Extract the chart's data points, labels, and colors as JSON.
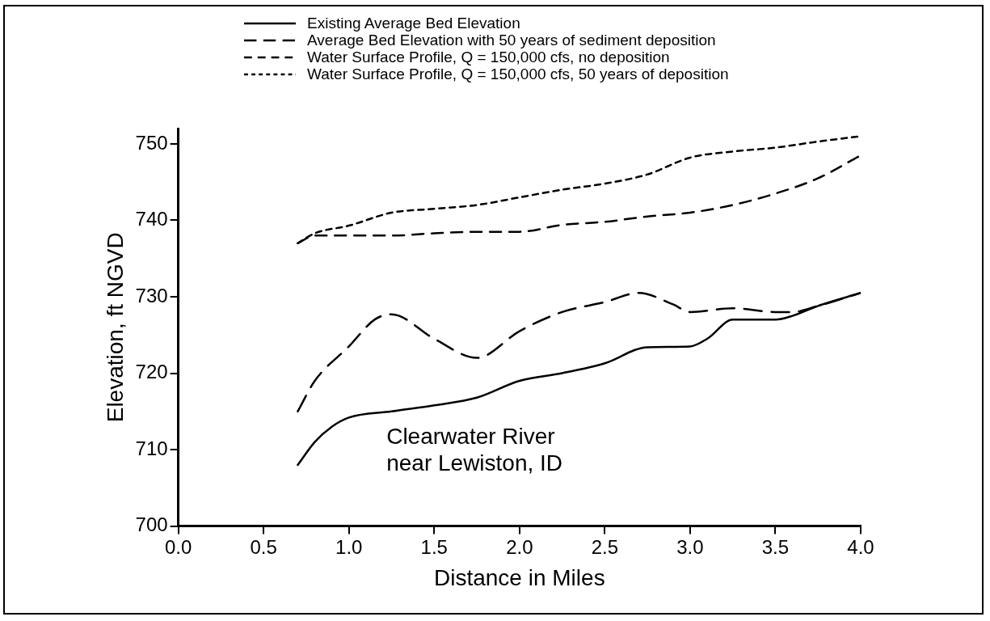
{
  "chart_data": {
    "type": "line",
    "xlabel": "Distance in Miles",
    "ylabel": "Elevation, ft NGVD",
    "xlim": [
      0,
      4
    ],
    "xticks": [
      {
        "value": 0,
        "label": "0.0"
      },
      {
        "value": 0.5,
        "label": "0.5"
      },
      {
        "value": 1,
        "label": "1.0"
      },
      {
        "value": 1.5,
        "label": "1.5"
      },
      {
        "value": 2,
        "label": "2.0"
      },
      {
        "value": 2.5,
        "label": "2.5"
      },
      {
        "value": 3,
        "label": "3.0"
      },
      {
        "value": 3.5,
        "label": "3.5"
      },
      {
        "value": 4,
        "label": "4.0"
      }
    ],
    "ylim": [
      700,
      752
    ],
    "yticks": [
      700,
      710,
      720,
      730,
      740,
      750
    ],
    "grid": false,
    "legend": "top",
    "marker": "none",
    "annotations": [
      "Clearwater River\nnear Lewiston, ID"
    ],
    "series": [
      {
        "name": "Existing Average Bed Elevation",
        "color": "#000000",
        "line_style": "solid",
        "x": [
          0.7,
          0.8,
          0.9,
          1.0,
          1.25,
          1.5,
          1.75,
          2.0,
          2.25,
          2.5,
          2.75,
          3.0,
          3.1,
          3.25,
          3.5,
          3.6,
          3.75,
          4.0
        ],
        "values": [
          708,
          711,
          713,
          714.2,
          715,
          715.8,
          716.8,
          719,
          720,
          721.3,
          723.4,
          723.5,
          724.5,
          727,
          727,
          727.5,
          728.8,
          730.5
        ]
      },
      {
        "name": "Average Bed Elevation with 50 years of sediment deposition",
        "color": "#000000",
        "line_style": "dashed",
        "x": [
          0.7,
          0.8,
          1.0,
          1.15,
          1.25,
          1.5,
          1.75,
          2.0,
          2.25,
          2.5,
          2.7,
          2.9,
          3.0,
          3.25,
          3.5,
          3.6,
          3.75,
          4.0
        ],
        "values": [
          715,
          719,
          723.5,
          727,
          727.7,
          724.5,
          722,
          725.5,
          728,
          729.3,
          730.5,
          729,
          728,
          728.5,
          728,
          728,
          728.8,
          730.5
        ]
      },
      {
        "name": "Water Surface Profile, Q = 150,000 cfs, no deposition",
        "color": "#000000",
        "line_style": "dashed",
        "x": [
          0.7,
          0.8,
          1.0,
          1.25,
          1.5,
          1.75,
          2.0,
          2.25,
          2.5,
          2.75,
          3.0,
          3.25,
          3.5,
          3.75,
          4.0
        ],
        "values": [
          737,
          738,
          738,
          738,
          738.3,
          738.5,
          738.5,
          739.4,
          739.8,
          740.5,
          741,
          742,
          743.5,
          745.5,
          748.5
        ]
      },
      {
        "name": "Water Surface Profile, Q = 150,000 cfs, 50 years of deposition",
        "color": "#000000",
        "line_style": "dotted",
        "x": [
          0.7,
          0.8,
          1.0,
          1.25,
          1.5,
          1.75,
          2.0,
          2.25,
          2.5,
          2.75,
          3.0,
          3.25,
          3.5,
          3.75,
          4.0
        ],
        "values": [
          737,
          738.3,
          739.3,
          741,
          741.5,
          742,
          743,
          744,
          744.8,
          746,
          748.2,
          749,
          749.5,
          750.3,
          751
        ]
      }
    ]
  }
}
